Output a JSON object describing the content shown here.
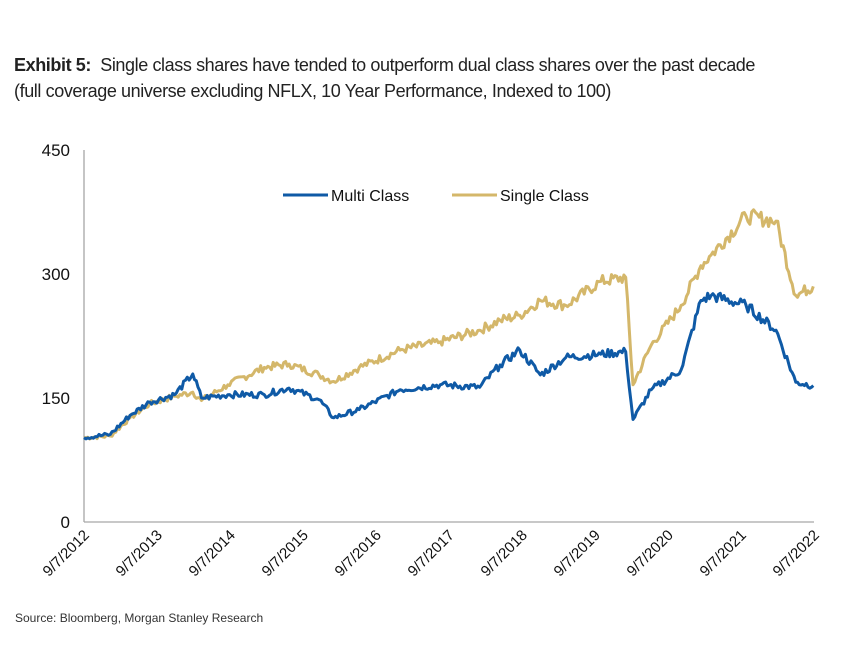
{
  "header": {
    "exhibit_label": "Exhibit 5:",
    "title": "Single class shares have tended to outperform dual class shares over the past decade",
    "subtitle": "(full coverage universe excluding NFLX, 10 Year Performance, Indexed to 100)"
  },
  "footer": {
    "source": "Source: Bloomberg, Morgan Stanley Research"
  },
  "chart_data": {
    "type": "line",
    "title": "Single class shares have tended to outperform dual class shares over the past decade",
    "subtitle": "(full coverage universe excluding NFLX, 10 Year Performance, Indexed to 100)",
    "xlabel": "",
    "ylabel": "",
    "ylim": [
      0,
      450
    ],
    "yticks": [
      0,
      150,
      300,
      450
    ],
    "xlim": [
      0,
      10
    ],
    "xtick_labels": [
      "9/7/2012",
      "9/7/2013",
      "9/7/2014",
      "9/7/2015",
      "9/7/2016",
      "9/7/2017",
      "9/7/2018",
      "9/7/2019",
      "9/7/2020",
      "9/7/2021",
      "9/7/2022"
    ],
    "grid": false,
    "legend_position": "top-center",
    "x_years": [
      0,
      0.36,
      0.63,
      0.9,
      1.24,
      1.49,
      1.61,
      1.97,
      2.47,
      2.81,
      3.22,
      3.42,
      3.77,
      4.33,
      4.88,
      5.42,
      5.7,
      5.97,
      6.25,
      6.6,
      7.08,
      7.42,
      7.52,
      7.77,
      8.18,
      8.45,
      8.59,
      9.07,
      9.48,
      9.75,
      9.99
    ],
    "series": [
      {
        "name": "Multi Class",
        "color": "#0f5aa6",
        "values": [
          102,
          106,
          129,
          145,
          154,
          179,
          150,
          154,
          154,
          162,
          148,
          126,
          136,
          160,
          166,
          163,
          190,
          208,
          178,
          199,
          203,
          206,
          124,
          160,
          184,
          268,
          274,
          262,
          232,
          169,
          165
        ]
      },
      {
        "name": "Single Class",
        "color": "#d4b76a",
        "values": [
          102,
          104,
          126,
          143,
          152,
          157,
          147,
          166,
          187,
          191,
          178,
          170,
          187,
          208,
          218,
          232,
          244,
          250,
          268,
          262,
          291,
          296,
          166,
          214,
          262,
          310,
          323,
          370,
          364,
          274,
          285
        ]
      }
    ]
  }
}
